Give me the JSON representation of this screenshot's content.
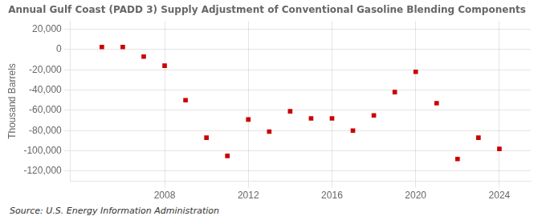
{
  "chart_data": {
    "type": "scatter",
    "title": "Annual Gulf Coast (PADD 3) Supply Adjustment of Conventional Gasoline Blending Components",
    "ylabel": "Thousand Barrels",
    "annotation": "Source: U.S. Energy Information Administration",
    "x": [
      2005,
      2006,
      2007,
      2008,
      2009,
      2010,
      2011,
      2012,
      2013,
      2014,
      2015,
      2016,
      2017,
      2018,
      2019,
      2020,
      2021,
      2022,
      2023,
      2024
    ],
    "values": [
      2500,
      2500,
      -7000,
      -16000,
      -50000,
      -87000,
      -105000,
      -69000,
      -81000,
      -61000,
      -68000,
      -68000,
      -80000,
      -65000,
      -42000,
      -22000,
      -53000,
      -108000,
      -87000,
      -98000
    ],
    "color": "#cc0000",
    "marker": "square",
    "xlim": [
      2003.5,
      2025.5
    ],
    "xticks": [
      2008,
      2012,
      2016,
      2020,
      2024
    ],
    "ylim": [
      -130000,
      28000
    ],
    "yticks": [
      {
        "value": 20000,
        "label": "20,000"
      },
      0,
      {
        "value": -20000,
        "label": "-20,000"
      },
      {
        "value": -40000,
        "label": "-40,000"
      },
      {
        "value": -60000,
        "label": "-60,000"
      },
      {
        "value": -80000,
        "label": "-80,000"
      },
      {
        "value": -100000,
        "label": "-100,000"
      },
      {
        "value": -120000,
        "label": "-120,000"
      }
    ],
    "grid": true
  }
}
